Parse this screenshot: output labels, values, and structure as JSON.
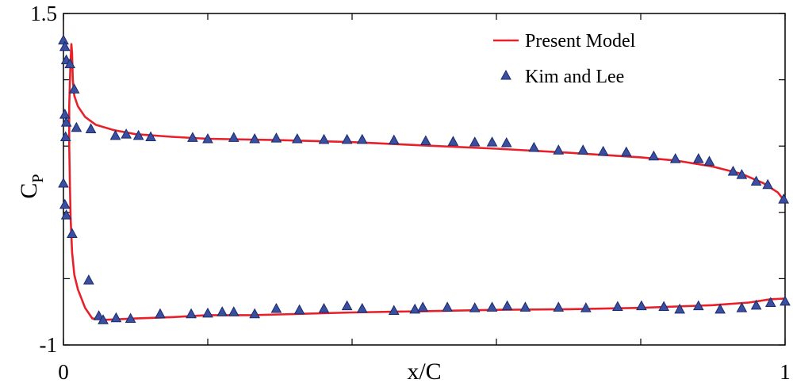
{
  "chart_data": {
    "type": "line",
    "title": "",
    "xlabel": "x/C",
    "ylabel": "C",
    "ylabel_sub": "P",
    "xlim": [
      0,
      1
    ],
    "ylim": [
      -1,
      1.5
    ],
    "x_ticks": [
      0,
      0.2,
      0.4,
      0.6,
      0.8,
      1
    ],
    "y_ticks": [
      -1,
      -0.5,
      0,
      0.5,
      1,
      1.5
    ],
    "x_tick_labels": [
      {
        "value": 0,
        "label": "0"
      },
      {
        "value": 1,
        "label": "1"
      }
    ],
    "y_tick_labels": [
      {
        "value": 1.5,
        "label": "1.5"
      },
      {
        "value": -1,
        "label": "-1"
      }
    ],
    "legend_position": "top-right",
    "colors": {
      "model": "#e8202a",
      "markers": "#3a4fa0"
    },
    "series": [
      {
        "name": "Present Model",
        "kind": "line",
        "legend_label": "Present Model",
        "curves": [
          [
            [
              0.009,
              0.2
            ],
            [
              0.008,
              0.5
            ],
            [
              0.008,
              0.8
            ],
            [
              0.009,
              1.0
            ],
            [
              0.01,
              1.15
            ],
            [
              0.011,
              1.27
            ],
            [
              0.012,
              1.2
            ],
            [
              0.013,
              1.0
            ],
            [
              0.015,
              0.88
            ],
            [
              0.02,
              0.8
            ],
            [
              0.03,
              0.72
            ],
            [
              0.045,
              0.66
            ],
            [
              0.07,
              0.62
            ],
            [
              0.1,
              0.59
            ],
            [
              0.15,
              0.57
            ],
            [
              0.2,
              0.555
            ],
            [
              0.3,
              0.545
            ],
            [
              0.4,
              0.53
            ],
            [
              0.5,
              0.505
            ],
            [
              0.6,
              0.48
            ],
            [
              0.7,
              0.45
            ],
            [
              0.8,
              0.415
            ],
            [
              0.85,
              0.39
            ],
            [
              0.9,
              0.345
            ],
            [
              0.94,
              0.29
            ],
            [
              0.97,
              0.22
            ],
            [
              0.99,
              0.15
            ],
            [
              1.0,
              0.08
            ]
          ],
          [
            [
              0.009,
              0.2
            ],
            [
              0.01,
              -0.05
            ],
            [
              0.012,
              -0.3
            ],
            [
              0.015,
              -0.47
            ],
            [
              0.02,
              -0.58
            ],
            [
              0.03,
              -0.72
            ],
            [
              0.04,
              -0.8
            ],
            [
              0.06,
              -0.81
            ],
            [
              0.08,
              -0.805
            ],
            [
              0.1,
              -0.8
            ],
            [
              0.15,
              -0.79
            ],
            [
              0.2,
              -0.775
            ],
            [
              0.26,
              -0.775
            ],
            [
              0.3,
              -0.77
            ],
            [
              0.4,
              -0.755
            ],
            [
              0.5,
              -0.745
            ],
            [
              0.6,
              -0.735
            ],
            [
              0.7,
              -0.73
            ],
            [
              0.8,
              -0.72
            ],
            [
              0.9,
              -0.7
            ],
            [
              0.95,
              -0.68
            ],
            [
              0.98,
              -0.655
            ],
            [
              1.0,
              -0.65
            ]
          ]
        ]
      },
      {
        "name": "Kim and Lee",
        "kind": "marker",
        "marker": "triangle",
        "legend_label": "Kim and Lee",
        "points": [
          [
            0.0,
            1.3
          ],
          [
            0.002,
            1.25
          ],
          [
            0.004,
            1.15
          ],
          [
            0.009,
            1.12
          ],
          [
            0.015,
            0.93
          ],
          [
            0.002,
            0.74
          ],
          [
            0.004,
            0.68
          ],
          [
            0.003,
            0.57
          ],
          [
            0.018,
            0.64
          ],
          [
            0.038,
            0.63
          ],
          [
            0.072,
            0.58
          ],
          [
            0.087,
            0.59
          ],
          [
            0.104,
            0.58
          ],
          [
            0.121,
            0.57
          ],
          [
            0.179,
            0.565
          ],
          [
            0.2,
            0.555
          ],
          [
            0.236,
            0.565
          ],
          [
            0.265,
            0.555
          ],
          [
            0.295,
            0.56
          ],
          [
            0.324,
            0.555
          ],
          [
            0.361,
            0.55
          ],
          [
            0.393,
            0.55
          ],
          [
            0.414,
            0.55
          ],
          [
            0.458,
            0.545
          ],
          [
            0.502,
            0.54
          ],
          [
            0.54,
            0.535
          ],
          [
            0.57,
            0.53
          ],
          [
            0.594,
            0.53
          ],
          [
            0.614,
            0.525
          ],
          [
            0.652,
            0.49
          ],
          [
            0.686,
            0.47
          ],
          [
            0.72,
            0.47
          ],
          [
            0.748,
            0.46
          ],
          [
            0.78,
            0.455
          ],
          [
            0.818,
            0.425
          ],
          [
            0.848,
            0.405
          ],
          [
            0.88,
            0.405
          ],
          [
            0.895,
            0.385
          ],
          [
            0.928,
            0.31
          ],
          [
            0.94,
            0.285
          ],
          [
            0.96,
            0.235
          ],
          [
            0.976,
            0.21
          ],
          [
            0.998,
            0.1
          ],
          [
            0.0,
            0.22
          ],
          [
            0.002,
            0.06
          ],
          [
            0.004,
            -0.02
          ],
          [
            0.012,
            -0.16
          ],
          [
            0.035,
            -0.51
          ],
          [
            0.049,
            -0.78
          ],
          [
            0.055,
            -0.81
          ],
          [
            0.073,
            -0.795
          ],
          [
            0.093,
            -0.8
          ],
          [
            0.134,
            -0.765
          ],
          [
            0.177,
            -0.765
          ],
          [
            0.2,
            -0.76
          ],
          [
            0.22,
            -0.75
          ],
          [
            0.236,
            -0.75
          ],
          [
            0.265,
            -0.765
          ],
          [
            0.295,
            -0.725
          ],
          [
            0.327,
            -0.735
          ],
          [
            0.361,
            -0.725
          ],
          [
            0.393,
            -0.705
          ],
          [
            0.414,
            -0.725
          ],
          [
            0.458,
            -0.74
          ],
          [
            0.487,
            -0.73
          ],
          [
            0.498,
            -0.715
          ],
          [
            0.532,
            -0.715
          ],
          [
            0.57,
            -0.72
          ],
          [
            0.594,
            -0.715
          ],
          [
            0.615,
            -0.705
          ],
          [
            0.64,
            -0.715
          ],
          [
            0.686,
            -0.715
          ],
          [
            0.724,
            -0.72
          ],
          [
            0.768,
            -0.71
          ],
          [
            0.801,
            -0.705
          ],
          [
            0.832,
            -0.71
          ],
          [
            0.854,
            -0.73
          ],
          [
            0.88,
            -0.705
          ],
          [
            0.91,
            -0.73
          ],
          [
            0.94,
            -0.72
          ],
          [
            0.96,
            -0.7
          ],
          [
            0.98,
            -0.68
          ],
          [
            1.0,
            -0.67
          ]
        ]
      }
    ]
  }
}
